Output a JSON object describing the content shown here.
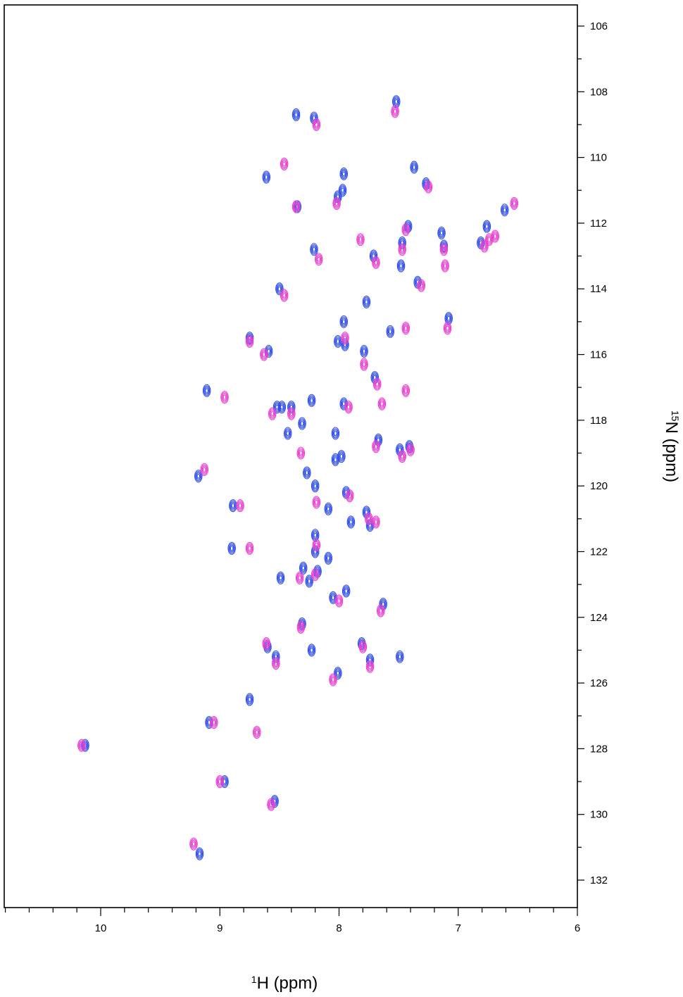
{
  "chart_data": {
    "type": "scatter",
    "title": "",
    "xlabel": "1H (ppm)",
    "xlabel_sup": "1",
    "xlabel_main": "H (ppm)",
    "ylabel": "15N (ppm)",
    "ylabel_sup": "15",
    "ylabel_main": "N (ppm)",
    "xlim": [
      10.8,
      6.0
    ],
    "ylim": [
      105.4,
      132.8
    ],
    "x_reversed": true,
    "y_reversed": true,
    "y_axis_position": "right",
    "grid": false,
    "legend": "none",
    "x_ticks": [
      10,
      9,
      8,
      7,
      6
    ],
    "x_tick_labels": [
      "10",
      "9",
      "8",
      "7",
      "6"
    ],
    "y_ticks": [
      106,
      108,
      110,
      112,
      114,
      116,
      118,
      120,
      122,
      124,
      126,
      128,
      130,
      132
    ],
    "y_tick_labels": [
      "106",
      "108",
      "110",
      "112",
      "114",
      "116",
      "118",
      "120",
      "122",
      "124",
      "126",
      "128",
      "130",
      "132"
    ],
    "series": [
      {
        "color": "#2f4de8",
        "points": [
          [
            7.52,
            108.3
          ],
          [
            8.36,
            108.7
          ],
          [
            8.21,
            108.8
          ],
          [
            8.61,
            110.6
          ],
          [
            7.96,
            110.5
          ],
          [
            7.37,
            110.3
          ],
          [
            7.27,
            110.8
          ],
          [
            7.97,
            111.0
          ],
          [
            8.01,
            111.2
          ],
          [
            8.35,
            111.5
          ],
          [
            6.61,
            111.6
          ],
          [
            6.76,
            112.1
          ],
          [
            7.42,
            112.1
          ],
          [
            7.47,
            112.6
          ],
          [
            7.14,
            112.3
          ],
          [
            7.12,
            112.7
          ],
          [
            6.81,
            112.6
          ],
          [
            8.21,
            112.8
          ],
          [
            7.71,
            113.0
          ],
          [
            7.48,
            113.3
          ],
          [
            7.34,
            113.8
          ],
          [
            8.5,
            114.0
          ],
          [
            7.77,
            114.4
          ],
          [
            7.08,
            114.9
          ],
          [
            7.96,
            115.0
          ],
          [
            7.57,
            115.3
          ],
          [
            8.75,
            115.5
          ],
          [
            8.01,
            115.6
          ],
          [
            7.95,
            115.7
          ],
          [
            8.59,
            115.9
          ],
          [
            7.79,
            115.9
          ],
          [
            7.7,
            116.7
          ],
          [
            9.11,
            117.1
          ],
          [
            8.52,
            117.6
          ],
          [
            8.48,
            117.6
          ],
          [
            8.4,
            117.6
          ],
          [
            8.23,
            117.4
          ],
          [
            7.96,
            117.5
          ],
          [
            8.31,
            118.1
          ],
          [
            8.43,
            118.4
          ],
          [
            8.03,
            118.4
          ],
          [
            7.67,
            118.6
          ],
          [
            7.49,
            118.9
          ],
          [
            7.41,
            118.8
          ],
          [
            8.27,
            119.6
          ],
          [
            8.03,
            119.2
          ],
          [
            7.98,
            119.1
          ],
          [
            9.18,
            119.7
          ],
          [
            8.2,
            120.0
          ],
          [
            7.94,
            120.2
          ],
          [
            8.89,
            120.6
          ],
          [
            8.09,
            120.7
          ],
          [
            7.9,
            121.1
          ],
          [
            7.77,
            120.8
          ],
          [
            7.74,
            121.2
          ],
          [
            8.2,
            121.5
          ],
          [
            8.9,
            121.9
          ],
          [
            8.2,
            122.0
          ],
          [
            8.09,
            122.2
          ],
          [
            8.3,
            122.5
          ],
          [
            8.25,
            122.9
          ],
          [
            8.49,
            122.8
          ],
          [
            8.18,
            122.6
          ],
          [
            7.94,
            123.2
          ],
          [
            8.05,
            123.4
          ],
          [
            7.63,
            123.6
          ],
          [
            8.31,
            124.2
          ],
          [
            7.81,
            124.8
          ],
          [
            8.6,
            124.9
          ],
          [
            8.23,
            125.0
          ],
          [
            8.53,
            125.2
          ],
          [
            7.49,
            125.2
          ],
          [
            7.74,
            125.3
          ],
          [
            8.01,
            125.7
          ],
          [
            8.75,
            126.5
          ],
          [
            9.09,
            127.2
          ],
          [
            10.13,
            127.9
          ],
          [
            8.96,
            129.0
          ],
          [
            8.54,
            129.6
          ],
          [
            9.17,
            131.2
          ]
        ]
      },
      {
        "color": "#e83fd0",
        "points": [
          [
            7.53,
            108.6
          ],
          [
            8.19,
            109.0
          ],
          [
            8.46,
            110.2
          ],
          [
            7.25,
            110.9
          ],
          [
            8.02,
            111.4
          ],
          [
            8.36,
            111.5
          ],
          [
            6.53,
            111.4
          ],
          [
            7.44,
            112.2
          ],
          [
            7.47,
            112.8
          ],
          [
            7.82,
            112.5
          ],
          [
            7.12,
            112.8
          ],
          [
            7.11,
            113.3
          ],
          [
            6.78,
            112.7
          ],
          [
            6.74,
            112.5
          ],
          [
            6.69,
            112.4
          ],
          [
            8.17,
            113.1
          ],
          [
            7.69,
            113.2
          ],
          [
            7.31,
            113.9
          ],
          [
            8.46,
            114.2
          ],
          [
            7.09,
            115.2
          ],
          [
            7.95,
            115.5
          ],
          [
            7.44,
            115.2
          ],
          [
            8.75,
            115.6
          ],
          [
            8.63,
            116.0
          ],
          [
            7.79,
            116.3
          ],
          [
            7.68,
            116.9
          ],
          [
            8.96,
            117.3
          ],
          [
            7.44,
            117.1
          ],
          [
            8.56,
            117.8
          ],
          [
            8.4,
            117.8
          ],
          [
            7.92,
            117.6
          ],
          [
            7.64,
            117.5
          ],
          [
            8.32,
            119.0
          ],
          [
            7.69,
            118.8
          ],
          [
            7.47,
            119.1
          ],
          [
            7.4,
            118.9
          ],
          [
            9.13,
            119.5
          ],
          [
            8.19,
            120.5
          ],
          [
            8.83,
            120.6
          ],
          [
            7.91,
            120.3
          ],
          [
            7.69,
            121.1
          ],
          [
            7.75,
            121.0
          ],
          [
            8.75,
            121.9
          ],
          [
            8.19,
            121.8
          ],
          [
            8.33,
            122.8
          ],
          [
            8.2,
            122.7
          ],
          [
            8.0,
            123.5
          ],
          [
            7.65,
            123.8
          ],
          [
            8.32,
            124.3
          ],
          [
            7.8,
            124.9
          ],
          [
            8.61,
            124.8
          ],
          [
            8.53,
            125.4
          ],
          [
            7.74,
            125.5
          ],
          [
            8.05,
            125.9
          ],
          [
            8.69,
            127.5
          ],
          [
            9.05,
            127.2
          ],
          [
            10.16,
            127.9
          ],
          [
            9.0,
            129.0
          ],
          [
            8.57,
            129.7
          ],
          [
            9.22,
            130.9
          ]
        ]
      }
    ]
  }
}
